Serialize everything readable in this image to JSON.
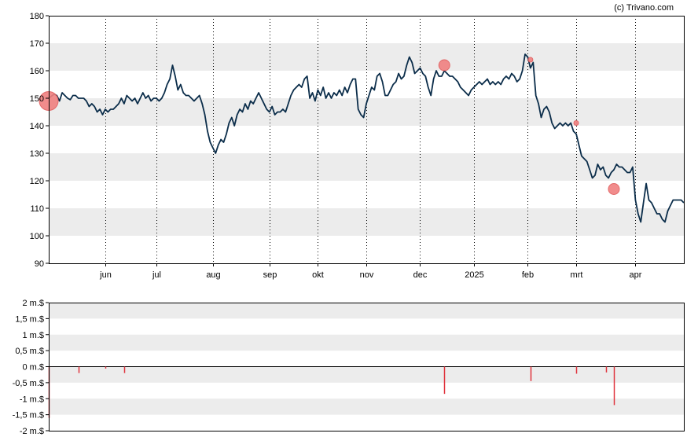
{
  "copyright": "(c) Trivano.com",
  "colors": {
    "price_line": "#0b2d4a",
    "marker": "#f08080",
    "marker_stroke": "#e05a5a",
    "band": "#ececec",
    "volume_bar": "#e0323c"
  },
  "chart_data": [
    {
      "type": "line",
      "title": "",
      "ylim": [
        90,
        180
      ],
      "yticks": [
        90,
        100,
        110,
        120,
        130,
        140,
        150,
        160,
        170,
        180
      ],
      "ytick_labels": [
        "90",
        "100",
        "110",
        "120",
        "130",
        "140",
        "150",
        "160",
        "170",
        "180"
      ],
      "xlim": [
        0,
        236
      ],
      "xticks": [
        {
          "label": "jun",
          "x": 21
        },
        {
          "label": "jul",
          "x": 40
        },
        {
          "label": "aug",
          "x": 61
        },
        {
          "label": "sep",
          "x": 82
        },
        {
          "label": "okt",
          "x": 100
        },
        {
          "label": "nov",
          "x": 118
        },
        {
          "label": "dec",
          "x": 138
        },
        {
          "label": "2025",
          "x": 158
        },
        {
          "label": "feb",
          "x": 178
        },
        {
          "label": "mrt",
          "x": 196
        },
        {
          "label": "apr",
          "x": 218
        }
      ],
      "grid": {
        "vertical": "dotted",
        "horizontal_bands": true
      },
      "series": [
        {
          "points": [
            [
              0,
              150
            ],
            [
              2,
              151.5
            ],
            [
              3,
              151
            ],
            [
              4,
              149
            ],
            [
              5,
              152
            ],
            [
              6,
              151
            ],
            [
              7,
              150
            ],
            [
              8,
              149.5
            ],
            [
              9,
              151
            ],
            [
              10,
              151
            ],
            [
              11,
              150
            ],
            [
              13,
              150
            ],
            [
              14,
              149
            ],
            [
              15,
              147
            ],
            [
              16,
              148
            ],
            [
              17,
              147
            ],
            [
              18,
              145
            ],
            [
              19,
              146
            ],
            [
              20,
              144
            ],
            [
              21,
              146
            ],
            [
              22,
              145
            ],
            [
              23,
              146
            ],
            [
              24,
              146
            ],
            [
              25,
              147
            ],
            [
              26,
              148
            ],
            [
              27,
              150
            ],
            [
              28,
              148
            ],
            [
              29,
              151
            ],
            [
              30,
              150
            ],
            [
              31,
              149
            ],
            [
              32,
              150
            ],
            [
              33,
              148
            ],
            [
              34,
              150
            ],
            [
              35,
              152
            ],
            [
              36,
              150
            ],
            [
              37,
              151
            ],
            [
              38,
              149
            ],
            [
              39,
              150
            ],
            [
              40,
              150
            ],
            [
              41,
              149
            ],
            [
              42,
              150
            ],
            [
              43,
              152
            ],
            [
              44,
              155
            ],
            [
              45,
              157
            ],
            [
              46,
              162
            ],
            [
              47,
              158
            ],
            [
              48,
              153
            ],
            [
              49,
              155
            ],
            [
              50,
              152
            ],
            [
              51,
              151
            ],
            [
              52,
              151
            ],
            [
              53,
              150
            ],
            [
              54,
              149
            ],
            [
              55,
              150
            ],
            [
              56,
              151
            ],
            [
              57,
              148
            ],
            [
              58,
              144
            ],
            [
              59,
              138
            ],
            [
              60,
              134
            ],
            [
              61,
              132
            ],
            [
              62,
              130
            ],
            [
              63,
              133
            ],
            [
              64,
              135
            ],
            [
              65,
              134
            ],
            [
              66,
              137
            ],
            [
              67,
              141
            ],
            [
              68,
              143
            ],
            [
              69,
              140
            ],
            [
              70,
              144
            ],
            [
              71,
              146
            ],
            [
              72,
              145
            ],
            [
              73,
              148
            ],
            [
              74,
              146
            ],
            [
              75,
              149
            ],
            [
              76,
              148
            ],
            [
              77,
              150
            ],
            [
              78,
              152
            ],
            [
              79,
              150
            ],
            [
              80,
              148
            ],
            [
              81,
              146
            ],
            [
              82,
              145
            ],
            [
              83,
              147
            ],
            [
              84,
              144
            ],
            [
              85,
              145
            ],
            [
              86,
              145
            ],
            [
              87,
              146
            ],
            [
              88,
              145
            ],
            [
              89,
              148
            ],
            [
              90,
              151
            ],
            [
              91,
              153
            ],
            [
              92,
              154
            ],
            [
              93,
              155
            ],
            [
              94,
              154
            ],
            [
              95,
              157
            ],
            [
              96,
              158
            ],
            [
              97,
              150
            ],
            [
              98,
              152
            ],
            [
              99,
              149
            ],
            [
              100,
              153
            ],
            [
              101,
              151
            ],
            [
              102,
              154
            ],
            [
              103,
              150
            ],
            [
              104,
              152
            ],
            [
              105,
              150
            ],
            [
              106,
              152
            ],
            [
              107,
              151
            ],
            [
              108,
              153
            ],
            [
              109,
              151
            ],
            [
              110,
              154
            ],
            [
              111,
              152
            ],
            [
              112,
              155
            ],
            [
              113,
              157
            ],
            [
              114,
              157
            ],
            [
              115,
              146
            ],
            [
              116,
              144
            ],
            [
              117,
              143
            ],
            [
              118,
              148
            ],
            [
              119,
              151
            ],
            [
              120,
              154
            ],
            [
              121,
              153
            ],
            [
              122,
              158
            ],
            [
              123,
              159
            ],
            [
              124,
              156
            ],
            [
              125,
              151
            ],
            [
              126,
              151
            ],
            [
              127,
              153
            ],
            [
              128,
              155
            ],
            [
              129,
              156
            ],
            [
              130,
              159
            ],
            [
              131,
              157
            ],
            [
              132,
              158
            ],
            [
              133,
              162
            ],
            [
              134,
              165
            ],
            [
              135,
              163
            ],
            [
              136,
              159
            ],
            [
              137,
              160
            ],
            [
              138,
              161
            ],
            [
              139,
              159
            ],
            [
              140,
              158
            ],
            [
              141,
              154
            ],
            [
              142,
              151
            ],
            [
              143,
              157
            ],
            [
              144,
              160
            ],
            [
              145,
              158
            ],
            [
              146,
              158
            ],
            [
              147,
              160
            ],
            [
              148,
              159
            ],
            [
              149,
              158
            ],
            [
              150,
              158
            ],
            [
              151,
              157
            ],
            [
              152,
              156
            ],
            [
              153,
              154
            ],
            [
              154,
              153
            ],
            [
              155,
              152
            ],
            [
              156,
              151
            ],
            [
              157,
              153
            ],
            [
              158,
              154
            ],
            [
              159,
              155
            ],
            [
              160,
              156
            ],
            [
              161,
              155
            ],
            [
              162,
              156
            ],
            [
              163,
              157
            ],
            [
              164,
              155
            ],
            [
              165,
              156
            ],
            [
              166,
              155
            ],
            [
              167,
              156
            ],
            [
              168,
              155
            ],
            [
              169,
              157
            ],
            [
              170,
              158
            ],
            [
              171,
              157
            ],
            [
              172,
              159
            ],
            [
              173,
              158
            ],
            [
              174,
              156
            ],
            [
              175,
              157
            ],
            [
              176,
              160
            ],
            [
              177,
              166
            ],
            [
              178,
              165
            ],
            [
              179,
              161
            ],
            [
              180,
              163
            ],
            [
              181,
              151
            ],
            [
              182,
              148
            ],
            [
              183,
              143
            ],
            [
              184,
              146
            ],
            [
              185,
              147
            ],
            [
              186,
              145
            ],
            [
              187,
              141
            ],
            [
              188,
              139
            ],
            [
              189,
              140
            ],
            [
              190,
              141
            ],
            [
              191,
              140
            ],
            [
              192,
              141
            ],
            [
              193,
              140
            ],
            [
              194,
              141
            ],
            [
              195,
              138
            ],
            [
              196,
              137
            ],
            [
              197,
              133
            ],
            [
              198,
              129
            ],
            [
              199,
              128
            ],
            [
              200,
              127
            ],
            [
              201,
              124
            ],
            [
              202,
              121
            ],
            [
              203,
              122
            ],
            [
              204,
              126
            ],
            [
              205,
              124
            ],
            [
              206,
              125
            ],
            [
              207,
              122
            ],
            [
              208,
              121
            ],
            [
              209,
              123
            ],
            [
              210,
              124
            ],
            [
              211,
              126
            ],
            [
              212,
              125
            ],
            [
              213,
              125
            ],
            [
              214,
              124
            ],
            [
              215,
              123
            ],
            [
              216,
              123
            ],
            [
              217,
              125
            ],
            [
              218,
              113
            ],
            [
              219,
              108
            ],
            [
              220,
              105
            ],
            [
              221,
              112
            ],
            [
              222,
              119
            ],
            [
              223,
              113
            ],
            [
              224,
              112
            ],
            [
              225,
              110
            ],
            [
              226,
              108
            ],
            [
              227,
              108
            ],
            [
              228,
              106
            ],
            [
              229,
              105
            ],
            [
              230,
              109
            ],
            [
              231,
              111
            ],
            [
              232,
              113
            ],
            [
              233,
              113
            ],
            [
              234,
              113
            ],
            [
              235,
              113
            ],
            [
              236,
              112
            ]
          ]
        }
      ],
      "markers": [
        {
          "x": 0,
          "y": 149,
          "size": "large"
        },
        {
          "x": 147,
          "y": 162,
          "size": "medium"
        },
        {
          "x": 179,
          "y": 164,
          "size": "small"
        },
        {
          "x": 196,
          "y": 141,
          "size": "small"
        },
        {
          "x": 210,
          "y": 117,
          "size": "medium"
        }
      ]
    },
    {
      "type": "bar",
      "title": "",
      "ylim": [
        -2,
        2
      ],
      "ytick_labels": [
        "2 m.$",
        "1,5 m.$",
        "1 m.$",
        "0,5 m.$",
        "0 m.$",
        "-0,5 m.$",
        "-1 m.$",
        "-1,5 m.$",
        "-2 m.$"
      ],
      "yticks": [
        2,
        1.5,
        1,
        0.5,
        0,
        -0.5,
        -1,
        -1.5,
        -2
      ],
      "xlim": [
        0,
        236
      ],
      "bars": [
        {
          "x": 0,
          "value": -1.6
        },
        {
          "x": 11,
          "value": -0.2
        },
        {
          "x": 21,
          "value": -0.06
        },
        {
          "x": 28,
          "value": -0.2
        },
        {
          "x": 147,
          "value": -0.85
        },
        {
          "x": 179,
          "value": -0.45
        },
        {
          "x": 196,
          "value": -0.22
        },
        {
          "x": 207,
          "value": -0.18
        },
        {
          "x": 210,
          "value": -1.2
        }
      ]
    }
  ]
}
